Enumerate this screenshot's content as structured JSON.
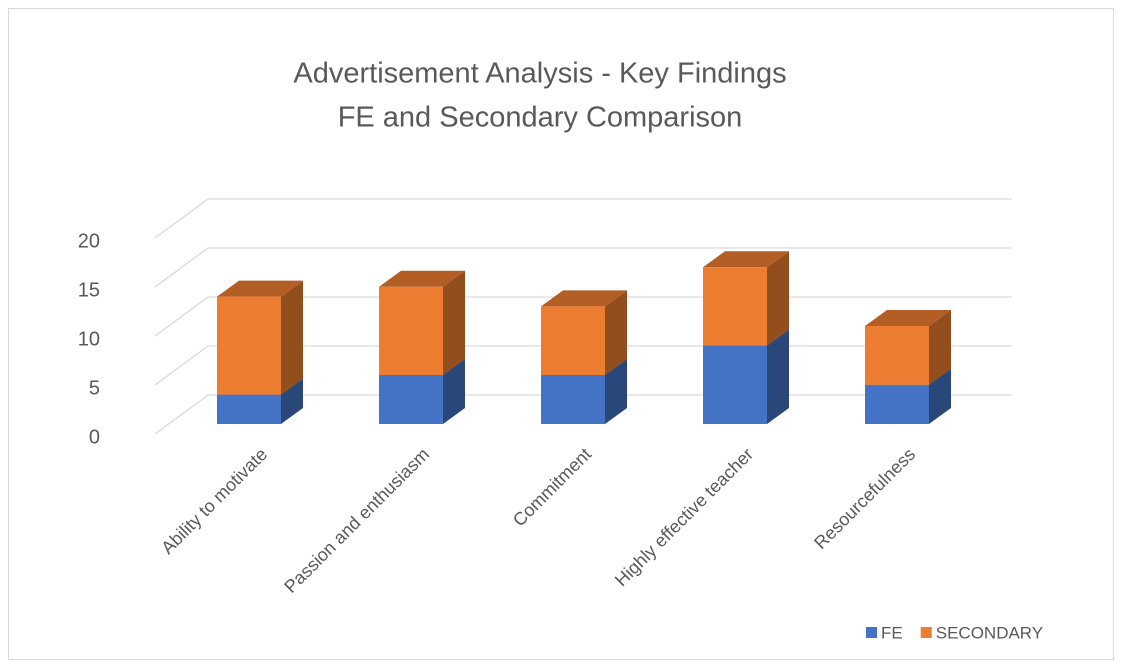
{
  "chart_data": {
    "type": "bar3d_stacked",
    "title_lines": [
      "Advertisement Analysis -  Key Findings",
      "FE and Secondary Comparison"
    ],
    "categories": [
      "Ability to motivate",
      "Passion and enthusiasm",
      "Commitment",
      "Highly effective teacher",
      "Resourcefulness"
    ],
    "series": [
      {
        "name": "FE",
        "color": "#4472c4",
        "values": [
          3,
          5,
          5,
          8,
          4
        ]
      },
      {
        "name": "SECONDARY",
        "color": "#ed7d31",
        "values": [
          10,
          9,
          7,
          8,
          6
        ]
      }
    ],
    "ylim": [
      0,
      20
    ],
    "yticks": [
      0,
      5,
      10,
      15,
      20
    ],
    "grid": true,
    "legend": "bottom-right"
  }
}
